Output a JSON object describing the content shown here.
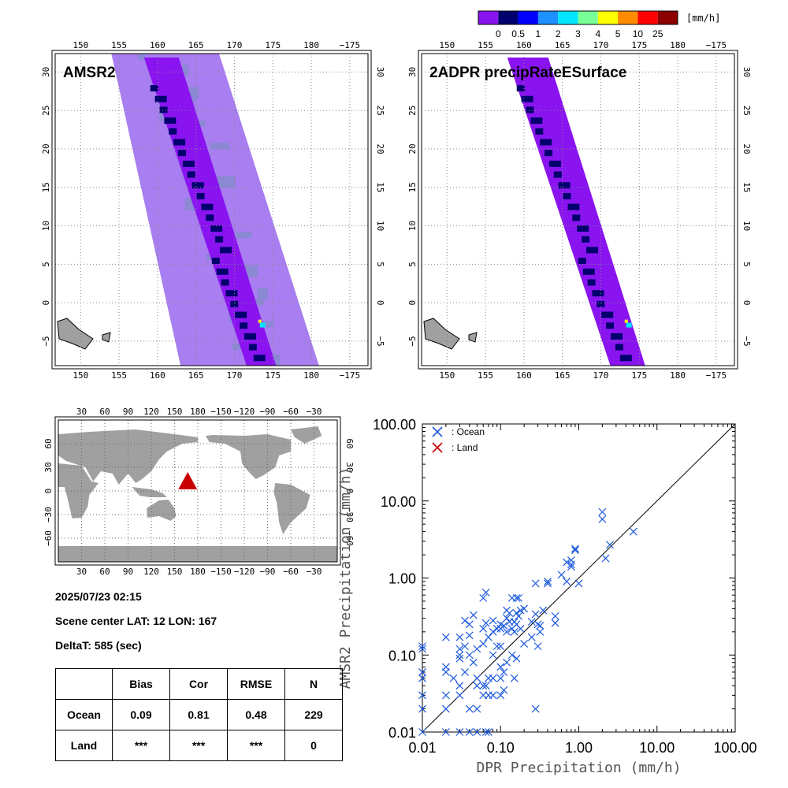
{
  "colorbar": {
    "unit": "[mm/h]",
    "tick_labels": [
      "0",
      "0.5",
      "1",
      "2",
      "3",
      "4",
      "5",
      "10",
      "25"
    ],
    "colors": [
      "#8a14f0",
      "#00006e",
      "#0000ff",
      "#1e90ff",
      "#00e6ff",
      "#78ff96",
      "#ffff00",
      "#ff8c00",
      "#ff0000",
      "#8c0000"
    ]
  },
  "maps": {
    "amsr2_title": "AMSR2",
    "dpr_title": "2ADPR precipRateESurface",
    "lon_ticks": [
      "150",
      "155",
      "160",
      "165",
      "170",
      "175",
      "180",
      "−175"
    ],
    "lat_ticks": [
      "30",
      "25",
      "20",
      "15",
      "10",
      "5",
      "0",
      "−5"
    ],
    "swath_colors": {
      "light": "#a87ef0",
      "gray": "#8b88d4",
      "purple": "#8a14f0",
      "navy": "#00006e",
      "land": "#a0a0a0"
    }
  },
  "world_map": {
    "lon_ticks": [
      "30",
      "60",
      "90",
      "120",
      "150",
      "180",
      "−150",
      "−120",
      "−90",
      "−60",
      "−30"
    ],
    "lat_ticks": [
      "60",
      "30",
      "0",
      "−30",
      "−60"
    ],
    "marker_color": "#c80000",
    "land_color": "#a0a0a0"
  },
  "info": {
    "datetime": "2025/07/23 02:15",
    "scene_center": "Scene center LAT: 12   LON: 167",
    "delta_t": "DeltaT:  585 (sec)"
  },
  "stats": {
    "headers": [
      "",
      "Bias",
      "Cor",
      "RMSE",
      "N"
    ],
    "rows": [
      [
        "Ocean",
        "0.09",
        "0.81",
        "0.48",
        "229"
      ],
      [
        "Land",
        "***",
        "***",
        "***",
        "0"
      ]
    ]
  },
  "chart_data": {
    "type": "scatter",
    "title": "",
    "xlabel": "DPR Precipitation (mm/h)",
    "ylabel": "AMSR2 Precipitation (mm/h)",
    "xscale": "log",
    "yscale": "log",
    "xlim": [
      0.01,
      100
    ],
    "ylim": [
      0.01,
      100
    ],
    "x_tick_labels": [
      "0.01",
      "0.10",
      "1.00",
      "10.00",
      "100.00"
    ],
    "y_tick_labels": [
      "0.01",
      "0.10",
      "1.00",
      "10.00",
      "100.00"
    ],
    "reference_line": "1:1",
    "legend_position": "top-left",
    "series": [
      {
        "name": ": Ocean",
        "color": "#1e5adc",
        "marker": "x",
        "points": [
          [
            0.01,
            0.13
          ],
          [
            0.01,
            0.12
          ],
          [
            0.01,
            0.06
          ],
          [
            0.01,
            0.05
          ],
          [
            0.01,
            0.03
          ],
          [
            0.01,
            0.02
          ],
          [
            0.01,
            0.01
          ],
          [
            0.02,
            0.17
          ],
          [
            0.02,
            0.07
          ],
          [
            0.02,
            0.06
          ],
          [
            0.02,
            0.03
          ],
          [
            0.02,
            0.02
          ],
          [
            0.02,
            0.01
          ],
          [
            0.025,
            0.05
          ],
          [
            0.03,
            0.17
          ],
          [
            0.03,
            0.12
          ],
          [
            0.03,
            0.1
          ],
          [
            0.03,
            0.09
          ],
          [
            0.03,
            0.04
          ],
          [
            0.03,
            0.03
          ],
          [
            0.03,
            0.01
          ],
          [
            0.035,
            0.28
          ],
          [
            0.035,
            0.13
          ],
          [
            0.035,
            0.06
          ],
          [
            0.04,
            0.25
          ],
          [
            0.04,
            0.18
          ],
          [
            0.04,
            0.1
          ],
          [
            0.04,
            0.02
          ],
          [
            0.04,
            0.01
          ],
          [
            0.045,
            0.33
          ],
          [
            0.045,
            0.08
          ],
          [
            0.05,
            0.12
          ],
          [
            0.05,
            0.05
          ],
          [
            0.05,
            0.04
          ],
          [
            0.05,
            0.02
          ],
          [
            0.05,
            0.01
          ],
          [
            0.06,
            0.55
          ],
          [
            0.06,
            0.22
          ],
          [
            0.06,
            0.14
          ],
          [
            0.06,
            0.04
          ],
          [
            0.06,
            0.03
          ],
          [
            0.065,
            0.65
          ],
          [
            0.065,
            0.26
          ],
          [
            0.065,
            0.04
          ],
          [
            0.065,
            0.01
          ],
          [
            0.07,
            0.17
          ],
          [
            0.07,
            0.05
          ],
          [
            0.07,
            0.03
          ],
          [
            0.07,
            0.01
          ],
          [
            0.08,
            0.28
          ],
          [
            0.08,
            0.2
          ],
          [
            0.08,
            0.1
          ],
          [
            0.08,
            0.05
          ],
          [
            0.08,
            0.03
          ],
          [
            0.09,
            0.22
          ],
          [
            0.09,
            0.13
          ],
          [
            0.1,
            0.25
          ],
          [
            0.1,
            0.22
          ],
          [
            0.1,
            0.13
          ],
          [
            0.1,
            0.07
          ],
          [
            0.1,
            0.05
          ],
          [
            0.1,
            0.03
          ],
          [
            0.11,
            0.24
          ],
          [
            0.11,
            0.06
          ],
          [
            0.11,
            0.035
          ],
          [
            0.12,
            0.38
          ],
          [
            0.12,
            0.3
          ],
          [
            0.12,
            0.2
          ],
          [
            0.12,
            0.08
          ],
          [
            0.13,
            0.35
          ],
          [
            0.13,
            0.27
          ],
          [
            0.14,
            0.55
          ],
          [
            0.14,
            0.22
          ],
          [
            0.14,
            0.1
          ],
          [
            0.15,
            0.27
          ],
          [
            0.15,
            0.2
          ],
          [
            0.15,
            0.05
          ],
          [
            0.16,
            0.55
          ],
          [
            0.16,
            0.35
          ],
          [
            0.16,
            0.25
          ],
          [
            0.16,
            0.09
          ],
          [
            0.17,
            0.55
          ],
          [
            0.17,
            0.32
          ],
          [
            0.18,
            0.38
          ],
          [
            0.18,
            0.22
          ],
          [
            0.2,
            0.4
          ],
          [
            0.2,
            0.14
          ],
          [
            0.25,
            0.27
          ],
          [
            0.25,
            0.17
          ],
          [
            0.28,
            0.85
          ],
          [
            0.28,
            0.34
          ],
          [
            0.28,
            0.02
          ],
          [
            0.3,
            0.25
          ],
          [
            0.3,
            0.13
          ],
          [
            0.32,
            0.24
          ],
          [
            0.32,
            0.2
          ],
          [
            0.35,
            0.38
          ],
          [
            0.4,
            0.9
          ],
          [
            0.4,
            0.85
          ],
          [
            0.5,
            0.32
          ],
          [
            0.5,
            0.26
          ],
          [
            0.6,
            1.1
          ],
          [
            0.7,
            1.6
          ],
          [
            0.7,
            0.9
          ],
          [
            0.8,
            1.4
          ],
          [
            0.8,
            1.5
          ],
          [
            0.8,
            1.7
          ],
          [
            0.9,
            2.4
          ],
          [
            0.9,
            2.3
          ],
          [
            1.0,
            0.85
          ],
          [
            2.0,
            7.2
          ],
          [
            2.0,
            5.8
          ],
          [
            2.2,
            1.8
          ],
          [
            2.5,
            2.7
          ],
          [
            5.0,
            4.0
          ]
        ]
      },
      {
        "name": ": Land",
        "color": "#c80000",
        "marker": "x",
        "points": []
      }
    ]
  }
}
